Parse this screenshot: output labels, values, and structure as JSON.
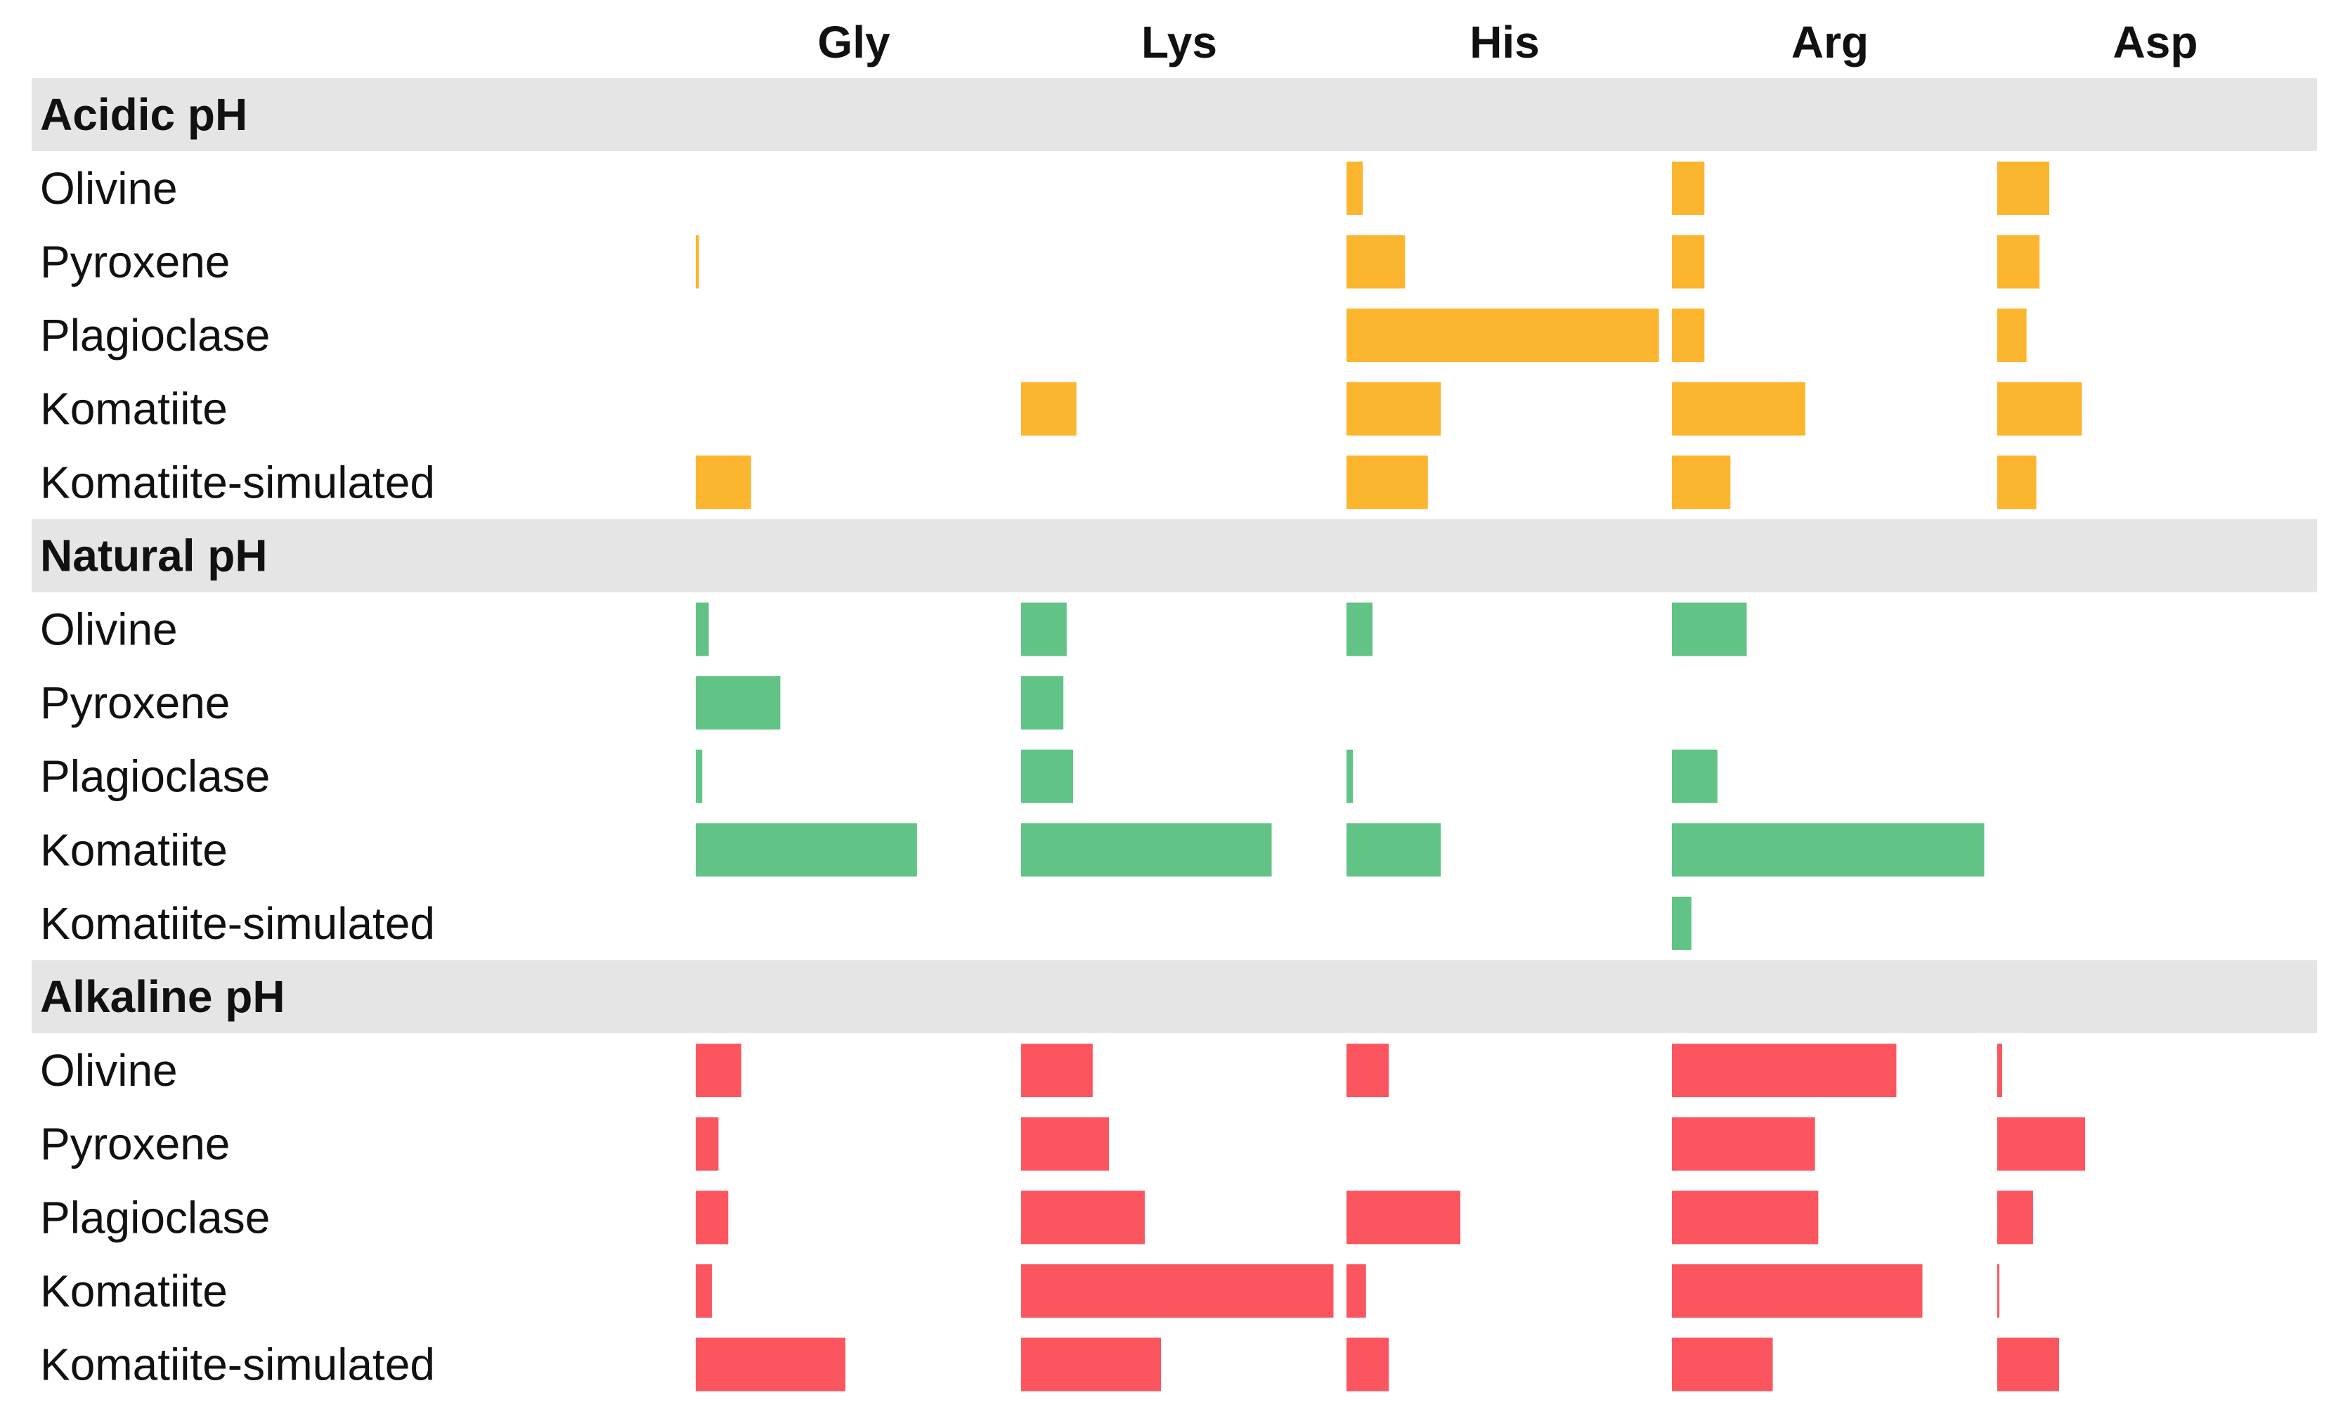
{
  "chart_data": {
    "type": "bar",
    "title": "",
    "columns": [
      "Gly",
      "Lys",
      "His",
      "Arg",
      "Asp"
    ],
    "max_value": 100,
    "value_note": "relative bar length, estimated as percent of a column's full width",
    "groups": [
      {
        "label": "Acidic pH",
        "color": "#FBB52E",
        "rows": [
          {
            "label": "Olivine",
            "values": [
              0,
              0,
              5,
              10,
              16
            ]
          },
          {
            "label": "Pyroxene",
            "values": [
              1,
              0,
              18,
              10,
              13
            ]
          },
          {
            "label": "Plagioclase",
            "values": [
              0,
              0,
              96,
              10,
              9
            ]
          },
          {
            "label": "Komatiite",
            "values": [
              0,
              17,
              29,
              41,
              26
            ]
          },
          {
            "label": "Komatiite-simulated",
            "values": [
              17,
              0,
              25,
              18,
              12
            ]
          }
        ]
      },
      {
        "label": "Natural pH",
        "color": "#62C387",
        "rows": [
          {
            "label": "Olivine",
            "values": [
              4,
              14,
              8,
              23,
              0
            ]
          },
          {
            "label": "Pyroxene",
            "values": [
              26,
              13,
              0,
              0,
              0
            ]
          },
          {
            "label": "Plagioclase",
            "values": [
              2,
              16,
              2,
              14,
              0
            ]
          },
          {
            "label": "Komatiite",
            "values": [
              68,
              77,
              29,
              96,
              0
            ]
          },
          {
            "label": "Komatiite-simulated",
            "values": [
              0,
              0,
              0,
              6,
              0
            ]
          }
        ]
      },
      {
        "label": "Alkaline pH",
        "color": "#FB5660",
        "rows": [
          {
            "label": "Olivine",
            "values": [
              14,
              22,
              13,
              69,
              1.5
            ]
          },
          {
            "label": "Pyroxene",
            "values": [
              7,
              27,
              0,
              44,
              27
            ]
          },
          {
            "label": "Plagioclase",
            "values": [
              10,
              38,
              35,
              45,
              11
            ]
          },
          {
            "label": "Komatiite",
            "values": [
              5,
              96,
              6,
              77,
              0.5
            ]
          },
          {
            "label": "Komatiite-simulated",
            "values": [
              46,
              43,
              13,
              31,
              19
            ]
          }
        ]
      }
    ]
  }
}
